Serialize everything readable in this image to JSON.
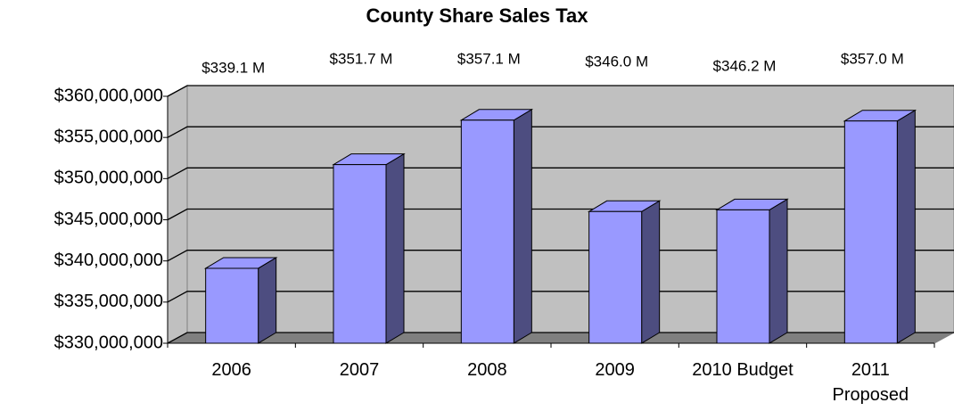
{
  "chart_data": {
    "type": "bar3d",
    "title": "County Share Sales Tax",
    "categories": [
      "2006",
      "2007",
      "2008",
      "2009",
      "2010 Budget",
      "2011\nProposed"
    ],
    "values": [
      339100000,
      351700000,
      357100000,
      346000000,
      346200000,
      357000000
    ],
    "value_labels": [
      "$339.1 M",
      "$351.7 M",
      "$357.1 M",
      "$346.0 M",
      "$346.2 M",
      "$357.0 M"
    ],
    "color": "#9999ff",
    "ylim": [
      330000000,
      360000000
    ],
    "yticks": [
      {
        "value": 330000000,
        "label": "$330,000,000"
      },
      {
        "value": 335000000,
        "label": "$335,000,000"
      },
      {
        "value": 340000000,
        "label": "$340,000,000"
      },
      {
        "value": 345000000,
        "label": "$345,000,000"
      },
      {
        "value": 350000000,
        "label": "$350,000,000"
      },
      {
        "value": 355000000,
        "label": "$355,000,000"
      },
      {
        "value": 360000000,
        "label": "$360,000,000"
      }
    ],
    "grid": true
  }
}
